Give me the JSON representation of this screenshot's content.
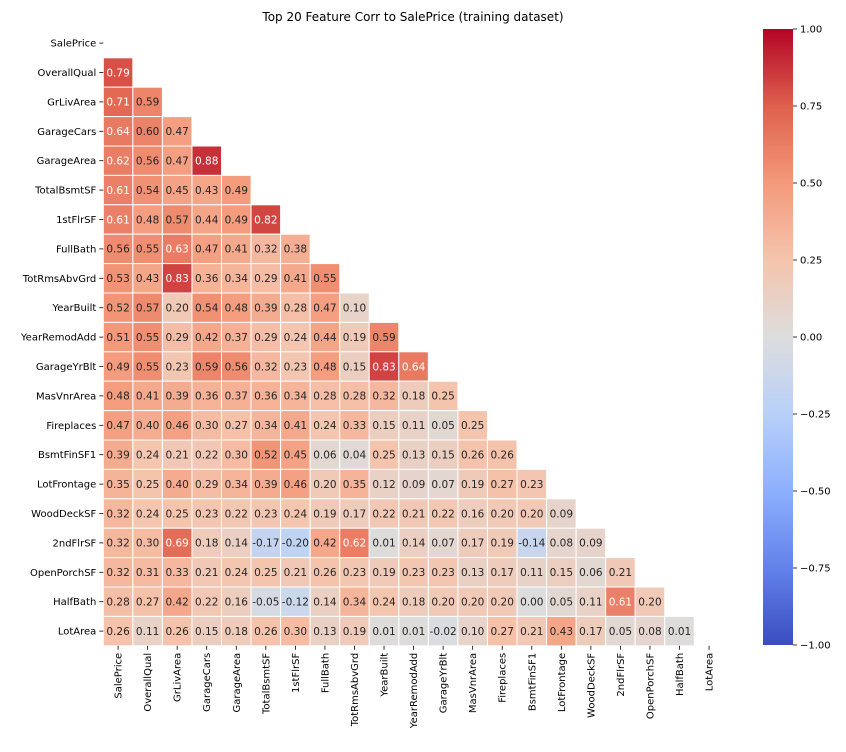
{
  "chart_data": {
    "type": "heatmap",
    "title": "Top 20 Feature Corr to SalePrice (training dataset)",
    "xlabel": "",
    "ylabel": "",
    "colormap": "coolwarm",
    "vmin": -1.0,
    "vmax": 1.0,
    "mask": "upper triangle including diagonal",
    "labels": [
      "SalePrice",
      "OverallQual",
      "GrLivArea",
      "GarageCars",
      "GarageArea",
      "TotalBsmtSF",
      "1stFlrSF",
      "FullBath",
      "TotRmsAbvGrd",
      "YearBuilt",
      "YearRemodAdd",
      "GarageYrBlt",
      "MasVnrArea",
      "Fireplaces",
      "BsmtFinSF1",
      "LotFrontage",
      "WoodDeckSF",
      "2ndFlrSF",
      "OpenPorchSF",
      "HalfBath",
      "LotArea"
    ],
    "lower_triangle_values": [
      [],
      [
        0.79
      ],
      [
        0.71,
        0.59
      ],
      [
        0.64,
        0.6,
        0.47
      ],
      [
        0.62,
        0.56,
        0.47,
        0.88
      ],
      [
        0.61,
        0.54,
        0.45,
        0.43,
        0.49
      ],
      [
        0.61,
        0.48,
        0.57,
        0.44,
        0.49,
        0.82
      ],
      [
        0.56,
        0.55,
        0.63,
        0.47,
        0.41,
        0.32,
        0.38
      ],
      [
        0.53,
        0.43,
        0.83,
        0.36,
        0.34,
        0.29,
        0.41,
        0.55
      ],
      [
        0.52,
        0.57,
        0.2,
        0.54,
        0.48,
        0.39,
        0.28,
        0.47,
        0.1
      ],
      [
        0.51,
        0.55,
        0.29,
        0.42,
        0.37,
        0.29,
        0.24,
        0.44,
        0.19,
        0.59
      ],
      [
        0.49,
        0.55,
        0.23,
        0.59,
        0.56,
        0.32,
        0.23,
        0.48,
        0.15,
        0.83,
        0.64
      ],
      [
        0.48,
        0.41,
        0.39,
        0.36,
        0.37,
        0.36,
        0.34,
        0.28,
        0.28,
        0.32,
        0.18,
        0.25
      ],
      [
        0.47,
        0.4,
        0.46,
        0.3,
        0.27,
        0.34,
        0.41,
        0.24,
        0.33,
        0.15,
        0.11,
        0.05,
        0.25
      ],
      [
        0.39,
        0.24,
        0.21,
        0.22,
        0.3,
        0.52,
        0.45,
        0.06,
        0.04,
        0.25,
        0.13,
        0.15,
        0.26,
        0.26
      ],
      [
        0.35,
        0.25,
        0.4,
        0.29,
        0.34,
        0.39,
        0.46,
        0.2,
        0.35,
        0.12,
        0.09,
        0.07,
        0.19,
        0.27,
        0.23
      ],
      [
        0.32,
        0.24,
        0.25,
        0.23,
        0.22,
        0.23,
        0.24,
        0.19,
        0.17,
        0.22,
        0.21,
        0.22,
        0.16,
        0.2,
        0.2,
        0.09
      ],
      [
        0.32,
        0.3,
        0.69,
        0.18,
        0.14,
        -0.17,
        -0.2,
        0.42,
        0.62,
        0.01,
        0.14,
        0.07,
        0.17,
        0.19,
        -0.14,
        0.08,
        0.09
      ],
      [
        0.32,
        0.31,
        0.33,
        0.21,
        0.24,
        0.25,
        0.21,
        0.26,
        0.23,
        0.19,
        0.23,
        0.23,
        0.13,
        0.17,
        0.11,
        0.15,
        0.06,
        0.21
      ],
      [
        0.28,
        0.27,
        0.42,
        0.22,
        0.16,
        -0.05,
        -0.12,
        0.14,
        0.34,
        0.24,
        0.18,
        0.2,
        0.2,
        0.2,
        0.0,
        0.05,
        0.11,
        0.61,
        0.2
      ],
      [
        0.26,
        0.11,
        0.26,
        0.15,
        0.18,
        0.26,
        0.3,
        0.13,
        0.19,
        0.01,
        0.01,
        -0.02,
        0.1,
        0.27,
        0.21,
        0.43,
        0.17,
        0.05,
        0.08,
        0.01
      ]
    ],
    "colorbar_ticks": [
      "1.00",
      "0.75",
      "0.50",
      "0.25",
      "0.00",
      "−0.25",
      "−0.50",
      "−0.75",
      "−1.00"
    ],
    "colorbar_tick_values": [
      1.0,
      0.75,
      0.5,
      0.25,
      0.0,
      -0.25,
      -0.5,
      -0.75,
      -1.0
    ],
    "legend": "colorbar right"
  }
}
